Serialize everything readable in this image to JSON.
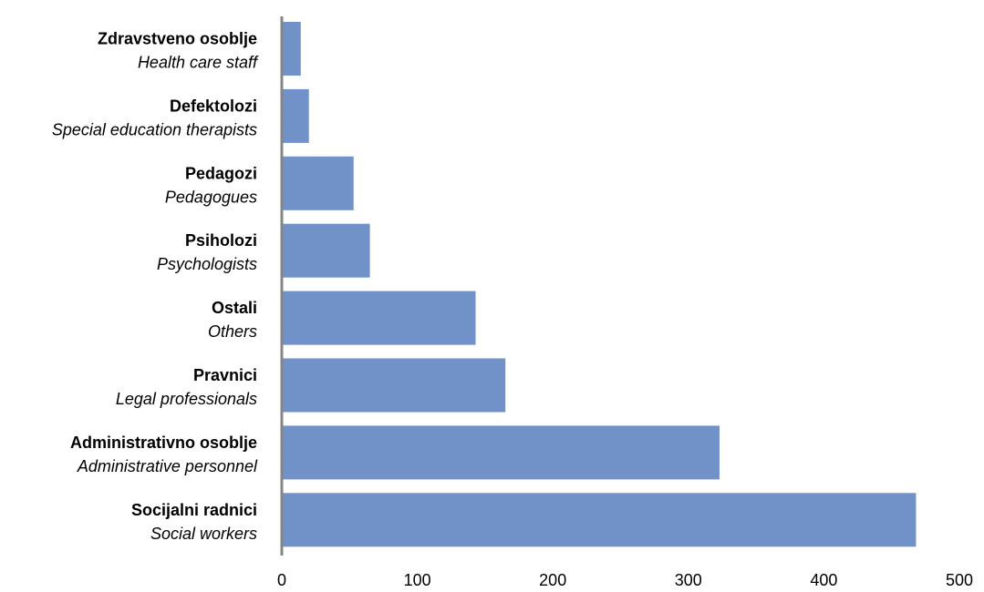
{
  "chart_data": {
    "type": "bar",
    "orientation": "horizontal",
    "categories": [
      {
        "label": "Zdravstveno osoblje",
        "sublabel": "Health care staff"
      },
      {
        "label": "Defektolozi",
        "sublabel": "Special education therapists"
      },
      {
        "label": "Pedagozi",
        "sublabel": "Pedagogues"
      },
      {
        "label": "Psiholozi",
        "sublabel": "Psychologists"
      },
      {
        "label": "Ostali",
        "sublabel": "Others"
      },
      {
        "label": "Pravnici",
        "sublabel": "Legal professionals"
      },
      {
        "label": "Administrativno osoblje",
        "sublabel": "Administrative personnel"
      },
      {
        "label": "Socijalni radnici",
        "sublabel": "Social workers"
      }
    ],
    "values": [
      14,
      20,
      53,
      65,
      143,
      165,
      323,
      468
    ],
    "xlim": [
      0,
      500
    ],
    "xticks": [
      "0",
      "100",
      "200",
      "300",
      "400",
      "500"
    ],
    "bar_color": "#7092C8",
    "axis_color": "#868686",
    "grid": false,
    "legend": "none",
    "title": "",
    "xlabel": "",
    "ylabel": ""
  }
}
